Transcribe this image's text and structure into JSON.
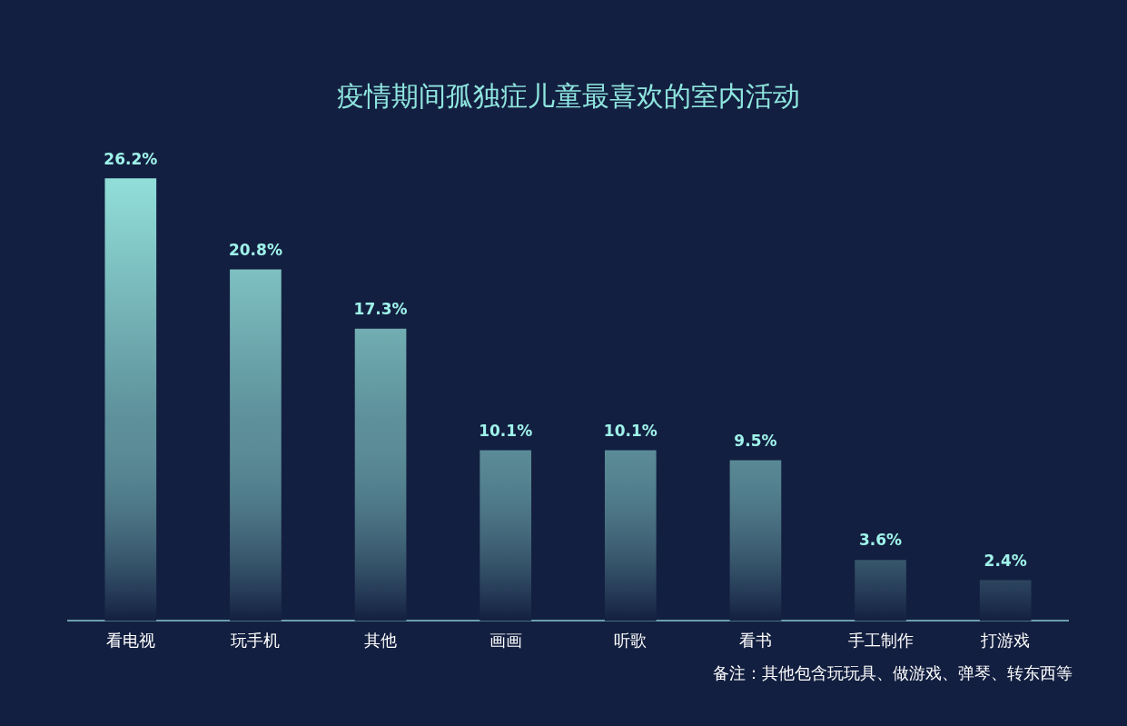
{
  "chart_data": {
    "type": "bar",
    "title": "疫情期间孤独症儿童最喜欢的室内活动",
    "categories": [
      "看电视",
      "玩手机",
      "其他",
      "画画",
      "听歌",
      "看书",
      "手工制作",
      "打游戏"
    ],
    "values": [
      26.2,
      20.8,
      17.3,
      10.1,
      10.1,
      9.5,
      3.6,
      2.4
    ],
    "value_labels": [
      "26.2%",
      "20.8%",
      "17.3%",
      "10.1%",
      "10.1%",
      "9.5%",
      "3.6%",
      "2.4%"
    ],
    "color": "#9ff3ea",
    "legend": false,
    "grid": false,
    "annotations": [
      "备注：其他包含玩玩具、做游戏、弹琴、转东西等"
    ]
  }
}
